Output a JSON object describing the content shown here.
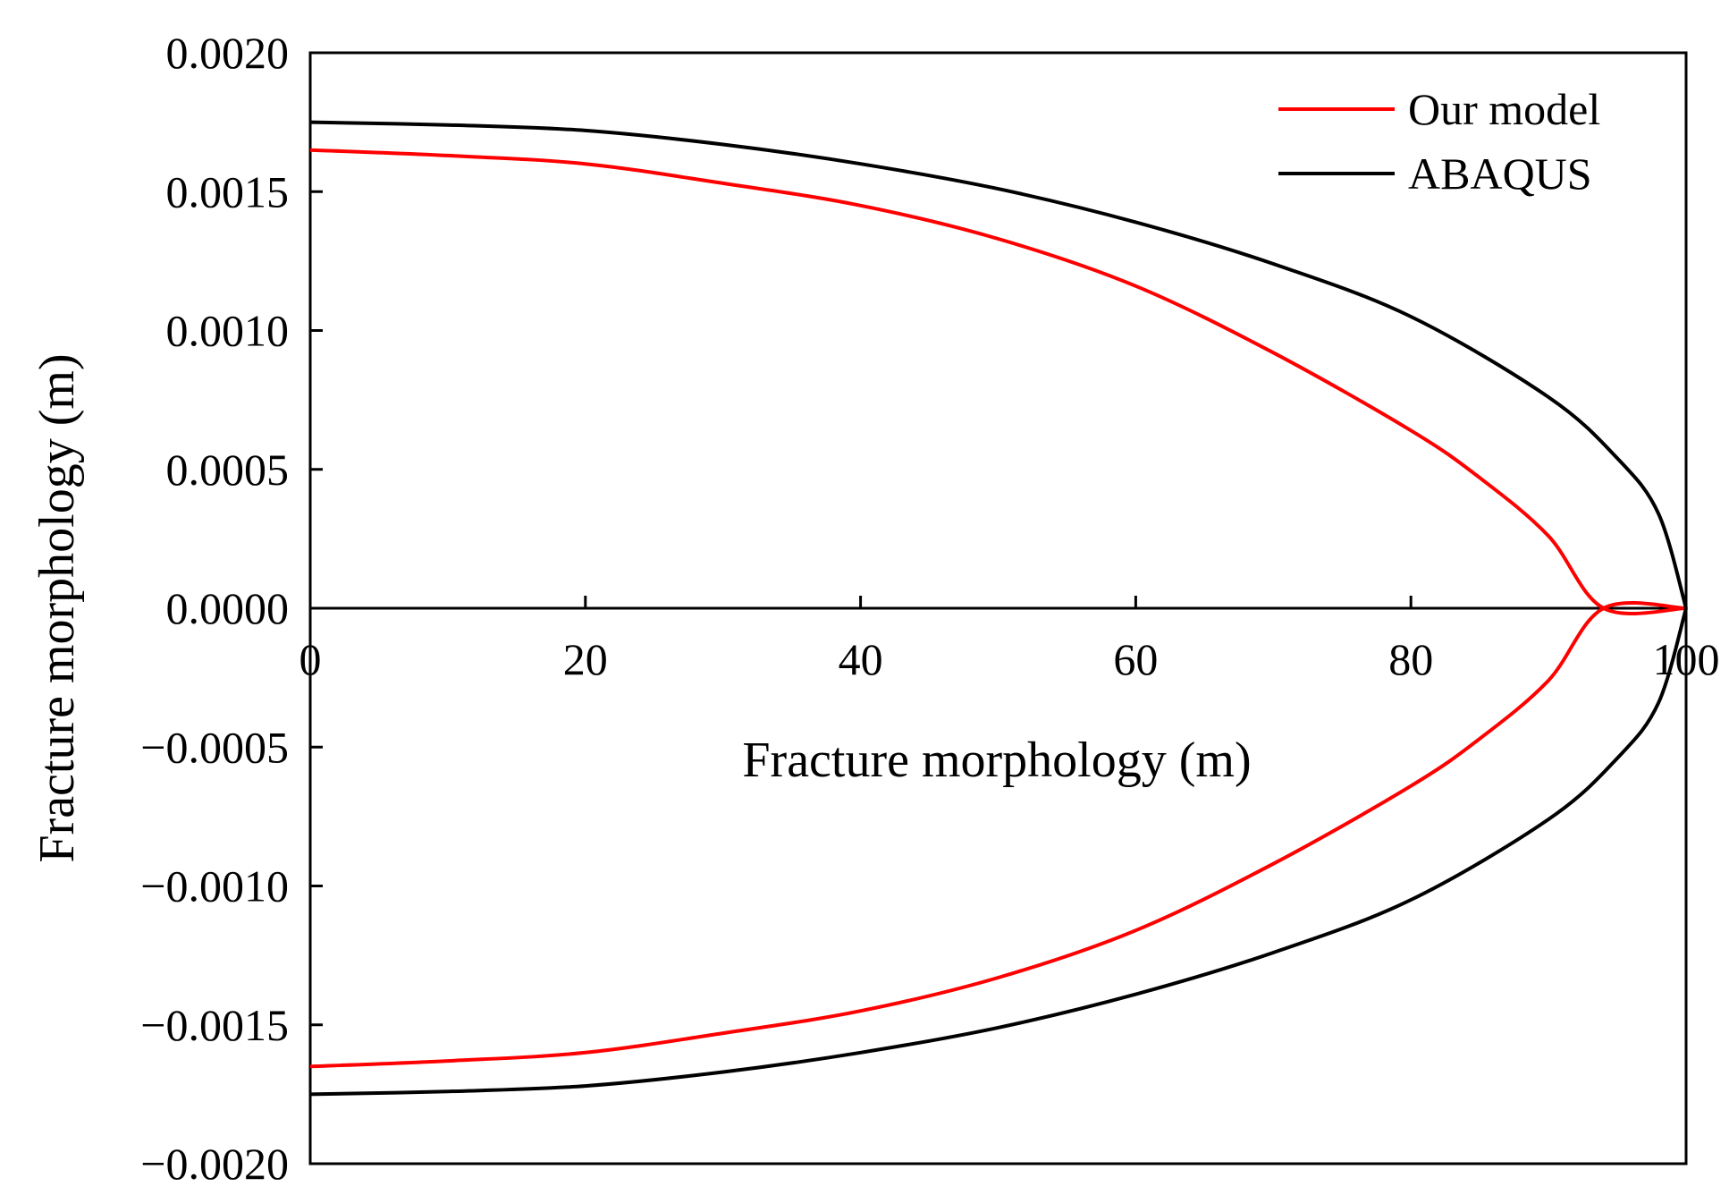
{
  "chart_data": {
    "type": "line",
    "title": "",
    "xlabel": "Fracture morphology (m)",
    "ylabel": "Fracture morphology (m)",
    "xlim": [
      0,
      100
    ],
    "ylim": [
      -0.002,
      0.002
    ],
    "x_ticks": [
      "0",
      "20",
      "40",
      "60",
      "80",
      "100"
    ],
    "y_ticks": [
      "−0.0020",
      "−0.0015",
      "−0.0010",
      "−0.0005",
      "0.0000",
      "0.0005",
      "0.0010",
      "0.0015",
      "0.0020"
    ],
    "grid": false,
    "legend_position": "top-right",
    "zero_line": true,
    "series": [
      {
        "name": "Our model",
        "color": "#ff0000",
        "x": [
          0,
          10,
          20,
          30,
          40,
          50,
          60,
          70,
          80,
          85,
          90,
          94,
          100
        ],
        "y_upper": [
          0.00165,
          0.00163,
          0.0016,
          0.00153,
          0.00145,
          0.00133,
          0.00116,
          0.00092,
          0.00064,
          0.00047,
          0.00026,
          0.0,
          0.0
        ],
        "y_lower": [
          -0.00165,
          -0.00163,
          -0.0016,
          -0.00153,
          -0.00145,
          -0.00133,
          -0.00116,
          -0.00092,
          -0.00064,
          -0.00047,
          -0.00026,
          0.0,
          0.0
        ]
      },
      {
        "name": "ABAQUS",
        "color": "#000000",
        "x": [
          0,
          10,
          20,
          30,
          40,
          50,
          60,
          70,
          80,
          90,
          95,
          98,
          100
        ],
        "y_upper": [
          0.00175,
          0.00174,
          0.00172,
          0.00167,
          0.0016,
          0.00151,
          0.00139,
          0.00124,
          0.00105,
          0.00076,
          0.00054,
          0.00034,
          0.0
        ],
        "y_lower": [
          -0.00175,
          -0.00174,
          -0.00172,
          -0.00167,
          -0.0016,
          -0.00151,
          -0.00139,
          -0.00124,
          -0.00105,
          -0.00076,
          -0.00054,
          -0.00034,
          0.0
        ]
      }
    ]
  }
}
